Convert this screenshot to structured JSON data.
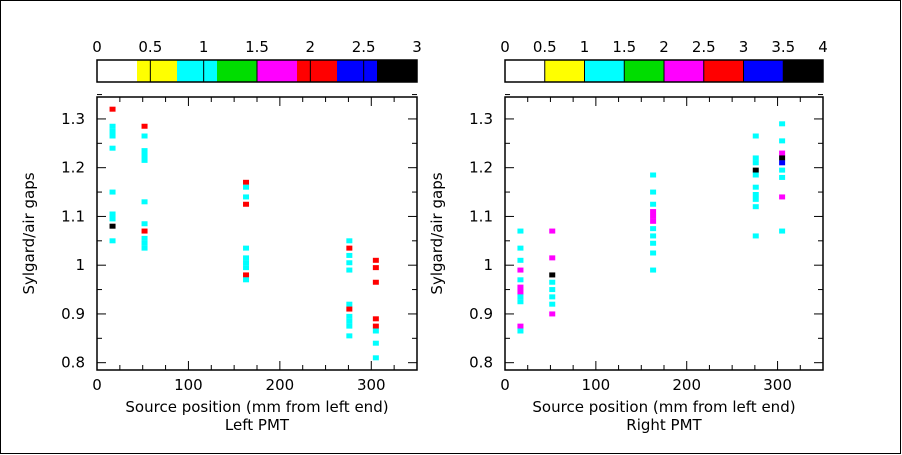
{
  "chart_data": [
    {
      "type": "scatter",
      "title": "",
      "caption": "Left PMT",
      "xlabel": "Source position (mm from left end)",
      "ylabel": "Sylgard/air gaps",
      "xlim": [
        0,
        350
      ],
      "ylim": [
        0.785,
        1.345
      ],
      "xticks": [
        0,
        100,
        200,
        300
      ],
      "yticks": [
        0.8,
        0.9,
        1,
        1.1,
        1.2,
        1.3
      ],
      "ytick_labels": [
        "0.8",
        "0.9",
        "1",
        "1.1",
        "1.2",
        "1.3"
      ],
      "color_scale": {
        "tick_labels": [
          "0",
          "0.5",
          "1",
          "1.5",
          "2",
          "2.5",
          "3"
        ],
        "tick_values": [
          0,
          0.5,
          1,
          1.5,
          2,
          2.5,
          3
        ],
        "bins": [
          {
            "from": 0,
            "to": 0.375,
            "color": "#ffffff"
          },
          {
            "from": 0.375,
            "to": 0.75,
            "color": "#ffff00"
          },
          {
            "from": 0.75,
            "to": 1.125,
            "color": "#00ffff"
          },
          {
            "from": 1.125,
            "to": 1.5,
            "color": "#00dd00"
          },
          {
            "from": 1.5,
            "to": 1.875,
            "color": "#ff00ff"
          },
          {
            "from": 1.875,
            "to": 2.25,
            "color": "#ff0000"
          },
          {
            "from": 2.25,
            "to": 2.625,
            "color": "#0000ff"
          },
          {
            "from": 2.625,
            "to": 3,
            "color": "#000000"
          }
        ]
      },
      "points": [
        {
          "x": 17,
          "y": 1.32,
          "color": "#ff0000"
        },
        {
          "x": 17,
          "y": 1.285,
          "color": "#00ffff"
        },
        {
          "x": 17,
          "y": 1.275,
          "color": "#00ffff"
        },
        {
          "x": 17,
          "y": 1.265,
          "color": "#00ffff"
        },
        {
          "x": 17,
          "y": 1.24,
          "color": "#00ffff"
        },
        {
          "x": 17,
          "y": 1.15,
          "color": "#00ffff"
        },
        {
          "x": 17,
          "y": 1.105,
          "color": "#00ffff"
        },
        {
          "x": 17,
          "y": 1.095,
          "color": "#00ffff"
        },
        {
          "x": 17,
          "y": 1.08,
          "color": "#000000"
        },
        {
          "x": 17,
          "y": 1.05,
          "color": "#00ffff"
        },
        {
          "x": 52,
          "y": 1.285,
          "color": "#ff0000"
        },
        {
          "x": 52,
          "y": 1.265,
          "color": "#00ffff"
        },
        {
          "x": 52,
          "y": 1.235,
          "color": "#00ffff"
        },
        {
          "x": 52,
          "y": 1.225,
          "color": "#00ffff"
        },
        {
          "x": 52,
          "y": 1.215,
          "color": "#00ffff"
        },
        {
          "x": 52,
          "y": 1.13,
          "color": "#00ffff"
        },
        {
          "x": 52,
          "y": 1.085,
          "color": "#00ffff"
        },
        {
          "x": 52,
          "y": 1.07,
          "color": "#ff0000"
        },
        {
          "x": 52,
          "y": 1.055,
          "color": "#00ffff"
        },
        {
          "x": 52,
          "y": 1.045,
          "color": "#00ffff"
        },
        {
          "x": 52,
          "y": 1.035,
          "color": "#00ffff"
        },
        {
          "x": 163,
          "y": 1.17,
          "color": "#ff0000"
        },
        {
          "x": 163,
          "y": 1.16,
          "color": "#00ffff"
        },
        {
          "x": 163,
          "y": 1.14,
          "color": "#00ffff"
        },
        {
          "x": 163,
          "y": 1.125,
          "color": "#ff0000"
        },
        {
          "x": 163,
          "y": 1.035,
          "color": "#00ffff"
        },
        {
          "x": 163,
          "y": 1.015,
          "color": "#00ffff"
        },
        {
          "x": 163,
          "y": 1.005,
          "color": "#00ffff"
        },
        {
          "x": 163,
          "y": 0.995,
          "color": "#00ffff"
        },
        {
          "x": 163,
          "y": 0.98,
          "color": "#ff0000"
        },
        {
          "x": 163,
          "y": 0.97,
          "color": "#00ffff"
        },
        {
          "x": 276,
          "y": 1.05,
          "color": "#00ffff"
        },
        {
          "x": 276,
          "y": 1.035,
          "color": "#ff0000"
        },
        {
          "x": 276,
          "y": 1.02,
          "color": "#00ffff"
        },
        {
          "x": 276,
          "y": 1.005,
          "color": "#00ffff"
        },
        {
          "x": 276,
          "y": 0.99,
          "color": "#00ffff"
        },
        {
          "x": 276,
          "y": 0.92,
          "color": "#00ffff"
        },
        {
          "x": 276,
          "y": 0.91,
          "color": "#ff0000"
        },
        {
          "x": 276,
          "y": 0.895,
          "color": "#00ffff"
        },
        {
          "x": 276,
          "y": 0.885,
          "color": "#00ffff"
        },
        {
          "x": 276,
          "y": 0.875,
          "color": "#00ffff"
        },
        {
          "x": 276,
          "y": 0.855,
          "color": "#00ffff"
        },
        {
          "x": 305,
          "y": 1.01,
          "color": "#ff0000"
        },
        {
          "x": 305,
          "y": 0.995,
          "color": "#ff0000"
        },
        {
          "x": 305,
          "y": 0.965,
          "color": "#ff0000"
        },
        {
          "x": 305,
          "y": 0.89,
          "color": "#ff0000"
        },
        {
          "x": 305,
          "y": 0.875,
          "color": "#ff0000"
        },
        {
          "x": 305,
          "y": 0.865,
          "color": "#00ffff"
        },
        {
          "x": 305,
          "y": 0.84,
          "color": "#00ffff"
        },
        {
          "x": 305,
          "y": 0.81,
          "color": "#00ffff"
        }
      ]
    },
    {
      "type": "scatter",
      "title": "",
      "caption": "Right PMT",
      "xlabel": "Source position (mm from left end)",
      "ylabel": "Sylgard/air gaps",
      "xlim": [
        0,
        350
      ],
      "ylim": [
        0.785,
        1.345
      ],
      "xticks": [
        0,
        100,
        200,
        300
      ],
      "yticks": [
        0.8,
        0.9,
        1,
        1.1,
        1.2,
        1.3
      ],
      "ytick_labels": [
        "0.8",
        "0.9",
        "1",
        "1.1",
        "1.2",
        "1.3"
      ],
      "color_scale": {
        "tick_labels": [
          "0",
          "0.5",
          "1",
          "1.5",
          "2",
          "2.5",
          "3",
          "3.5",
          "4"
        ],
        "tick_values": [
          0,
          0.5,
          1,
          1.5,
          2,
          2.5,
          3,
          3.5,
          4
        ],
        "bins": [
          {
            "from": 0,
            "to": 0.5,
            "color": "#ffffff"
          },
          {
            "from": 0.5,
            "to": 1,
            "color": "#ffff00"
          },
          {
            "from": 1,
            "to": 1.5,
            "color": "#00ffff"
          },
          {
            "from": 1.5,
            "to": 2,
            "color": "#00dd00"
          },
          {
            "from": 2,
            "to": 2.5,
            "color": "#ff00ff"
          },
          {
            "from": 2.5,
            "to": 3,
            "color": "#ff0000"
          },
          {
            "from": 3,
            "to": 3.5,
            "color": "#0000ff"
          },
          {
            "from": 3.5,
            "to": 4,
            "color": "#000000"
          }
        ]
      },
      "points": [
        {
          "x": 17,
          "y": 1.07,
          "color": "#00ffff"
        },
        {
          "x": 17,
          "y": 1.035,
          "color": "#00ffff"
        },
        {
          "x": 17,
          "y": 1.01,
          "color": "#00ffff"
        },
        {
          "x": 17,
          "y": 0.99,
          "color": "#ff00ff"
        },
        {
          "x": 17,
          "y": 0.97,
          "color": "#00ffff"
        },
        {
          "x": 17,
          "y": 0.955,
          "color": "#ff00ff"
        },
        {
          "x": 17,
          "y": 0.945,
          "color": "#ff00ff"
        },
        {
          "x": 17,
          "y": 0.935,
          "color": "#00ffff"
        },
        {
          "x": 17,
          "y": 0.925,
          "color": "#00ffff"
        },
        {
          "x": 17,
          "y": 0.875,
          "color": "#ff00ff"
        },
        {
          "x": 17,
          "y": 0.865,
          "color": "#00ffff"
        },
        {
          "x": 52,
          "y": 1.07,
          "color": "#ff00ff"
        },
        {
          "x": 52,
          "y": 1.015,
          "color": "#ff00ff"
        },
        {
          "x": 52,
          "y": 0.98,
          "color": "#000000"
        },
        {
          "x": 52,
          "y": 0.965,
          "color": "#00ffff"
        },
        {
          "x": 52,
          "y": 0.95,
          "color": "#00ffff"
        },
        {
          "x": 52,
          "y": 0.935,
          "color": "#00ffff"
        },
        {
          "x": 52,
          "y": 0.92,
          "color": "#00ffff"
        },
        {
          "x": 52,
          "y": 0.9,
          "color": "#ff00ff"
        },
        {
          "x": 163,
          "y": 1.185,
          "color": "#00ffff"
        },
        {
          "x": 163,
          "y": 1.15,
          "color": "#00ffff"
        },
        {
          "x": 163,
          "y": 1.125,
          "color": "#00ffff"
        },
        {
          "x": 163,
          "y": 1.11,
          "color": "#ff00ff"
        },
        {
          "x": 163,
          "y": 1.1,
          "color": "#ff00ff"
        },
        {
          "x": 163,
          "y": 1.09,
          "color": "#ff00ff"
        },
        {
          "x": 163,
          "y": 1.075,
          "color": "#00ffff"
        },
        {
          "x": 163,
          "y": 1.06,
          "color": "#00ffff"
        },
        {
          "x": 163,
          "y": 1.045,
          "color": "#00ffff"
        },
        {
          "x": 163,
          "y": 1.025,
          "color": "#00ffff"
        },
        {
          "x": 163,
          "y": 0.99,
          "color": "#00ffff"
        },
        {
          "x": 276,
          "y": 1.265,
          "color": "#00ffff"
        },
        {
          "x": 276,
          "y": 1.22,
          "color": "#00ffff"
        },
        {
          "x": 276,
          "y": 1.21,
          "color": "#00ffff"
        },
        {
          "x": 276,
          "y": 1.195,
          "color": "#000000"
        },
        {
          "x": 276,
          "y": 1.185,
          "color": "#00ffff"
        },
        {
          "x": 276,
          "y": 1.16,
          "color": "#00ffff"
        },
        {
          "x": 276,
          "y": 1.145,
          "color": "#00ffff"
        },
        {
          "x": 276,
          "y": 1.135,
          "color": "#00ffff"
        },
        {
          "x": 276,
          "y": 1.12,
          "color": "#00ffff"
        },
        {
          "x": 276,
          "y": 1.06,
          "color": "#00ffff"
        },
        {
          "x": 305,
          "y": 1.29,
          "color": "#00ffff"
        },
        {
          "x": 305,
          "y": 1.255,
          "color": "#00ffff"
        },
        {
          "x": 305,
          "y": 1.23,
          "color": "#ff00ff"
        },
        {
          "x": 305,
          "y": 1.22,
          "color": "#000000"
        },
        {
          "x": 305,
          "y": 1.21,
          "color": "#0000ff"
        },
        {
          "x": 305,
          "y": 1.195,
          "color": "#00ffff"
        },
        {
          "x": 305,
          "y": 1.18,
          "color": "#00ffff"
        },
        {
          "x": 305,
          "y": 1.14,
          "color": "#ff00ff"
        },
        {
          "x": 305,
          "y": 1.07,
          "color": "#00ffff"
        }
      ]
    }
  ]
}
